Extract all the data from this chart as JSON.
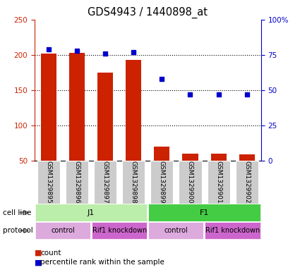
{
  "title": "GDS4943 / 1440898_at",
  "samples": [
    "GSM1329895",
    "GSM1329896",
    "GSM1329897",
    "GSM1329898",
    "GSM1329899",
    "GSM1329900",
    "GSM1329901",
    "GSM1329902"
  ],
  "bar_values": [
    202,
    203,
    175,
    193,
    70,
    60,
    60,
    59
  ],
  "percentile_values": [
    79,
    78,
    76,
    77,
    58,
    47,
    47,
    47
  ],
  "ylim_left": [
    50,
    250
  ],
  "ylim_right": [
    0,
    100
  ],
  "yticks_left": [
    50,
    100,
    150,
    200,
    250
  ],
  "yticks_right": [
    0,
    25,
    50,
    75,
    100
  ],
  "yticklabels_right": [
    "0",
    "25",
    "50",
    "75",
    "100%"
  ],
  "bar_color": "#cc2200",
  "dot_color": "#0000cc",
  "cell_line_groups": [
    {
      "label": "J1",
      "start": 0,
      "end": 4,
      "color": "#bbeeaa"
    },
    {
      "label": "F1",
      "start": 4,
      "end": 8,
      "color": "#44cc44"
    }
  ],
  "protocol_groups": [
    {
      "label": "control",
      "start": 0,
      "end": 2,
      "color": "#ddaadd"
    },
    {
      "label": "Rif1 knockdown",
      "start": 2,
      "end": 4,
      "color": "#cc66cc"
    },
    {
      "label": "control",
      "start": 4,
      "end": 6,
      "color": "#ddaadd"
    },
    {
      "label": "Rif1 knockdown",
      "start": 6,
      "end": 8,
      "color": "#cc66cc"
    }
  ],
  "legend_count_label": "count",
  "legend_pct_label": "percentile rank within the sample",
  "cell_line_label": "cell line",
  "protocol_label": "protocol",
  "tick_fontsize": 7.5,
  "title_fontsize": 10.5,
  "label_fontsize": 7.5,
  "sample_fontsize": 6.5,
  "group_fontsize": 8,
  "legend_fontsize": 7.5
}
